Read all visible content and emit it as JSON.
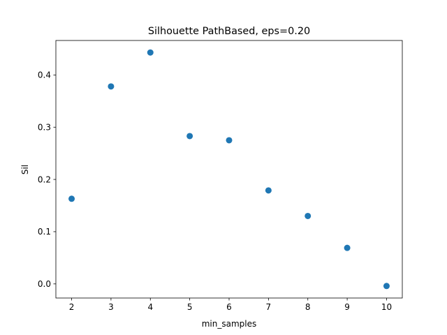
{
  "chart_data": {
    "type": "scatter",
    "title": "Silhouette PathBased, eps=0.20",
    "xlabel": "min_samples",
    "ylabel": "Sil",
    "xlim": [
      1.6,
      10.4
    ],
    "ylim": [
      -0.027,
      0.466
    ],
    "xticks": [
      2,
      3,
      4,
      5,
      6,
      7,
      8,
      9,
      10
    ],
    "xtick_labels": [
      "2",
      "3",
      "4",
      "5",
      "6",
      "7",
      "8",
      "9",
      "10"
    ],
    "yticks": [
      0.0,
      0.1,
      0.2,
      0.3,
      0.4
    ],
    "ytick_labels": [
      "0.0",
      "0.1",
      "0.2",
      "0.3",
      "0.4"
    ],
    "grid": false,
    "legend": false,
    "marker_color": "#1f77b4",
    "points": [
      {
        "x": 2,
        "y": 0.163
      },
      {
        "x": 3,
        "y": 0.378
      },
      {
        "x": 4,
        "y": 0.443
      },
      {
        "x": 5,
        "y": 0.283
      },
      {
        "x": 6,
        "y": 0.275
      },
      {
        "x": 7,
        "y": 0.179
      },
      {
        "x": 8,
        "y": 0.13
      },
      {
        "x": 9,
        "y": 0.069
      },
      {
        "x": 10,
        "y": -0.004
      }
    ]
  }
}
